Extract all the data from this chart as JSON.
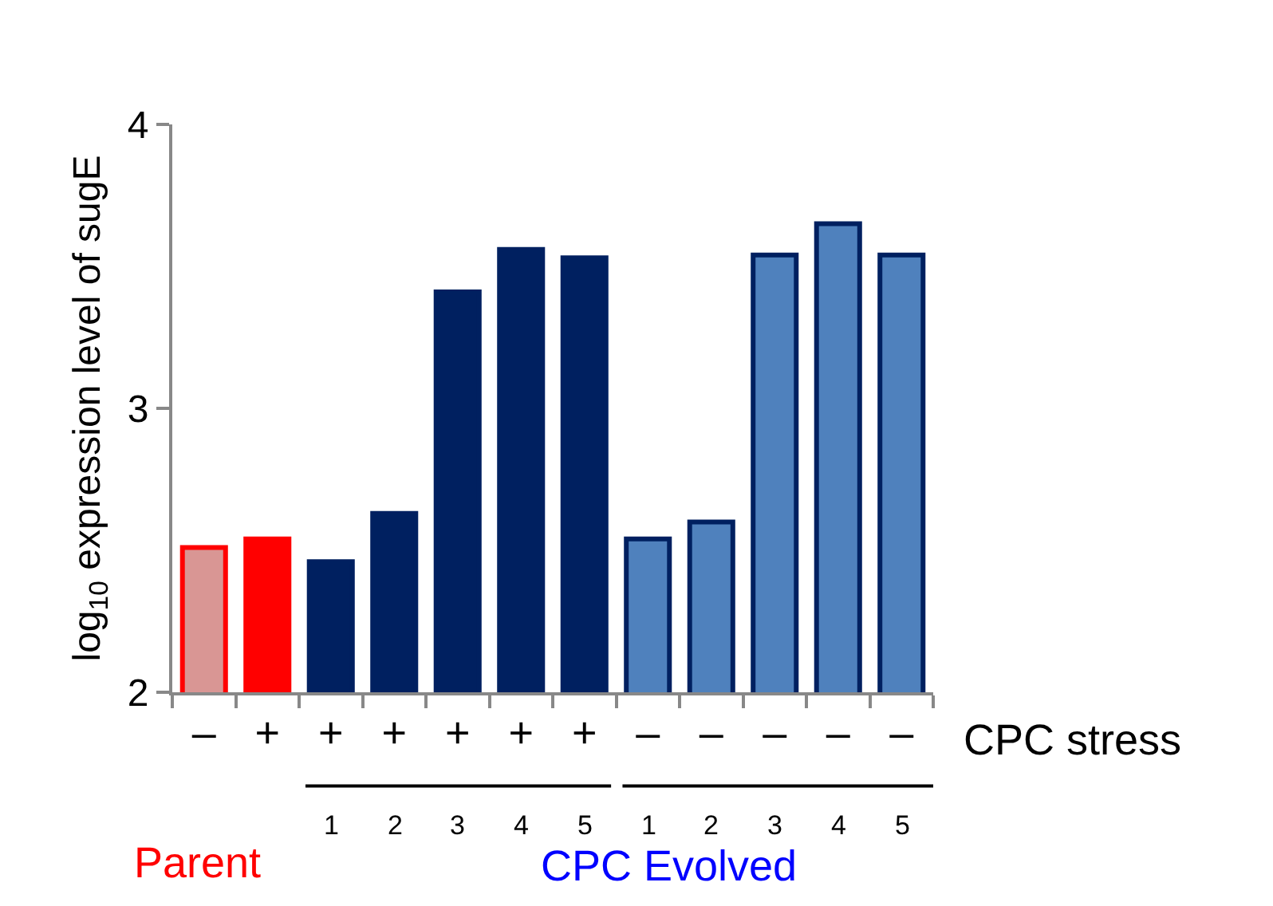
{
  "chart_data": {
    "type": "bar",
    "ylabel": "log$_{10}$ expression level of sugE",
    "categories": [
      "–",
      "+",
      "+\n1",
      "+\n2",
      "+\n3",
      "+\n4",
      "+\n5",
      "–\n1",
      "–\n2",
      "–\n3",
      "–\n4",
      "–\n5"
    ],
    "values": [
      2.51,
      2.54,
      2.46,
      2.63,
      3.41,
      3.56,
      3.53,
      2.54,
      2.6,
      3.54,
      3.65,
      3.54
    ],
    "colors": [
      "#d99694",
      "#ff0000",
      "#002060",
      "#002060",
      "#002060",
      "#002060",
      "#002060",
      "#4f81bd",
      "#4f81bd",
      "#4f81bd",
      "#4f81bd",
      "#4f81bd"
    ],
    "ylim": [
      2,
      4
    ],
    "yticks": [
      2,
      3,
      4
    ],
    "annotations": [
      "CPC stress",
      "Parent",
      "CPC Evolved"
    ]
  }
}
